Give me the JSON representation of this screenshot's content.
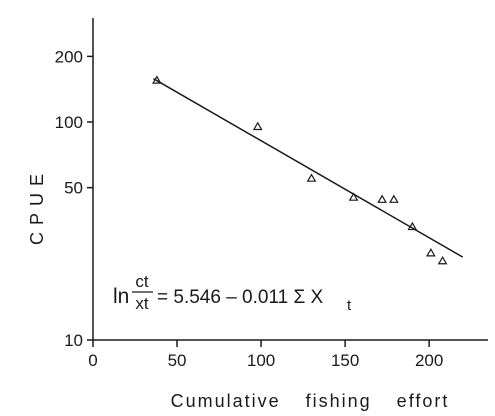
{
  "chart_data": {
    "type": "scatter",
    "title": "",
    "xlabel": "Cumulative fishing effort",
    "ylabel": "CPUE",
    "xlim": [
      0,
      235
    ],
    "ylim": [
      10,
      300
    ],
    "y_scale": "log",
    "x_ticks": [
      0,
      50,
      100,
      150,
      200
    ],
    "y_ticks": [
      10,
      50,
      100,
      200
    ],
    "grid": false,
    "points": [
      {
        "x": 38,
        "y": 155
      },
      {
        "x": 98,
        "y": 95
      },
      {
        "x": 130,
        "y": 55
      },
      {
        "x": 155,
        "y": 45
      },
      {
        "x": 172,
        "y": 44
      },
      {
        "x": 179,
        "y": 44
      },
      {
        "x": 190,
        "y": 33
      },
      {
        "x": 201,
        "y": 25
      },
      {
        "x": 208,
        "y": 23
      }
    ],
    "fit_line": {
      "x": [
        36,
        220
      ],
      "y": [
        158,
        24
      ]
    },
    "annotation": {
      "prefix": "ln",
      "numerator": "ct",
      "denominator": "xt",
      "rhs": "= 5.546 – 0.011 Σ X",
      "subscript": "t"
    }
  }
}
